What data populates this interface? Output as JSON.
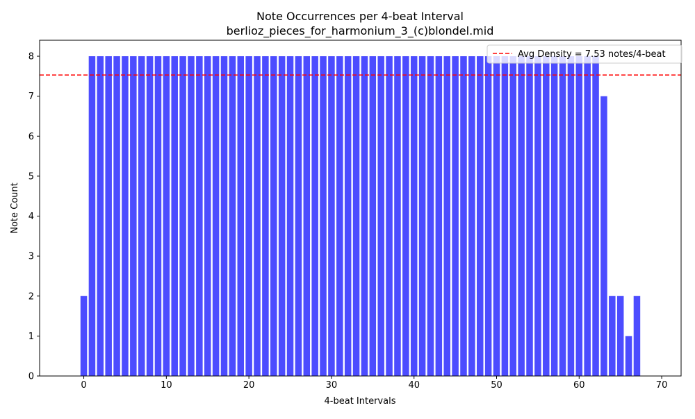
{
  "chart_data": {
    "type": "bar",
    "title": "Note Occurrences per 4-beat Interval",
    "subtitle": "berlioz_pieces_for_harmonium_3_(c)blondel.mid",
    "xlabel": "4-beat Intervals",
    "ylabel": "Note Count",
    "xlim": [
      -5.35,
      72.35
    ],
    "ylim": [
      0,
      8.4
    ],
    "xticks": [
      0,
      10,
      20,
      30,
      40,
      50,
      60,
      70
    ],
    "yticks": [
      0,
      1,
      2,
      3,
      4,
      5,
      6,
      7,
      8
    ],
    "bar_color": "#0000ff",
    "bar_opacity": 0.7,
    "x": [
      0,
      1,
      2,
      3,
      4,
      5,
      6,
      7,
      8,
      9,
      10,
      11,
      12,
      13,
      14,
      15,
      16,
      17,
      18,
      19,
      20,
      21,
      22,
      23,
      24,
      25,
      26,
      27,
      28,
      29,
      30,
      31,
      32,
      33,
      34,
      35,
      36,
      37,
      38,
      39,
      40,
      41,
      42,
      43,
      44,
      45,
      46,
      47,
      48,
      49,
      50,
      51,
      52,
      53,
      54,
      55,
      56,
      57,
      58,
      59,
      60,
      61,
      62,
      63,
      64,
      65,
      66,
      67
    ],
    "values": [
      2,
      8,
      8,
      8,
      8,
      8,
      8,
      8,
      8,
      8,
      8,
      8,
      8,
      8,
      8,
      8,
      8,
      8,
      8,
      8,
      8,
      8,
      8,
      8,
      8,
      8,
      8,
      8,
      8,
      8,
      8,
      8,
      8,
      8,
      8,
      8,
      8,
      8,
      8,
      8,
      8,
      8,
      8,
      8,
      8,
      8,
      8,
      8,
      8,
      8,
      8,
      8,
      8,
      8,
      8,
      8,
      8,
      8,
      8,
      8,
      8,
      8,
      8,
      7,
      2,
      2,
      1,
      2
    ],
    "reference_line": {
      "value": 7.53,
      "label": "Avg Density = 7.53 notes/4-beat",
      "color": "#ff0000",
      "style": "dashed"
    },
    "legend_position": "top-right",
    "grid": false
  }
}
